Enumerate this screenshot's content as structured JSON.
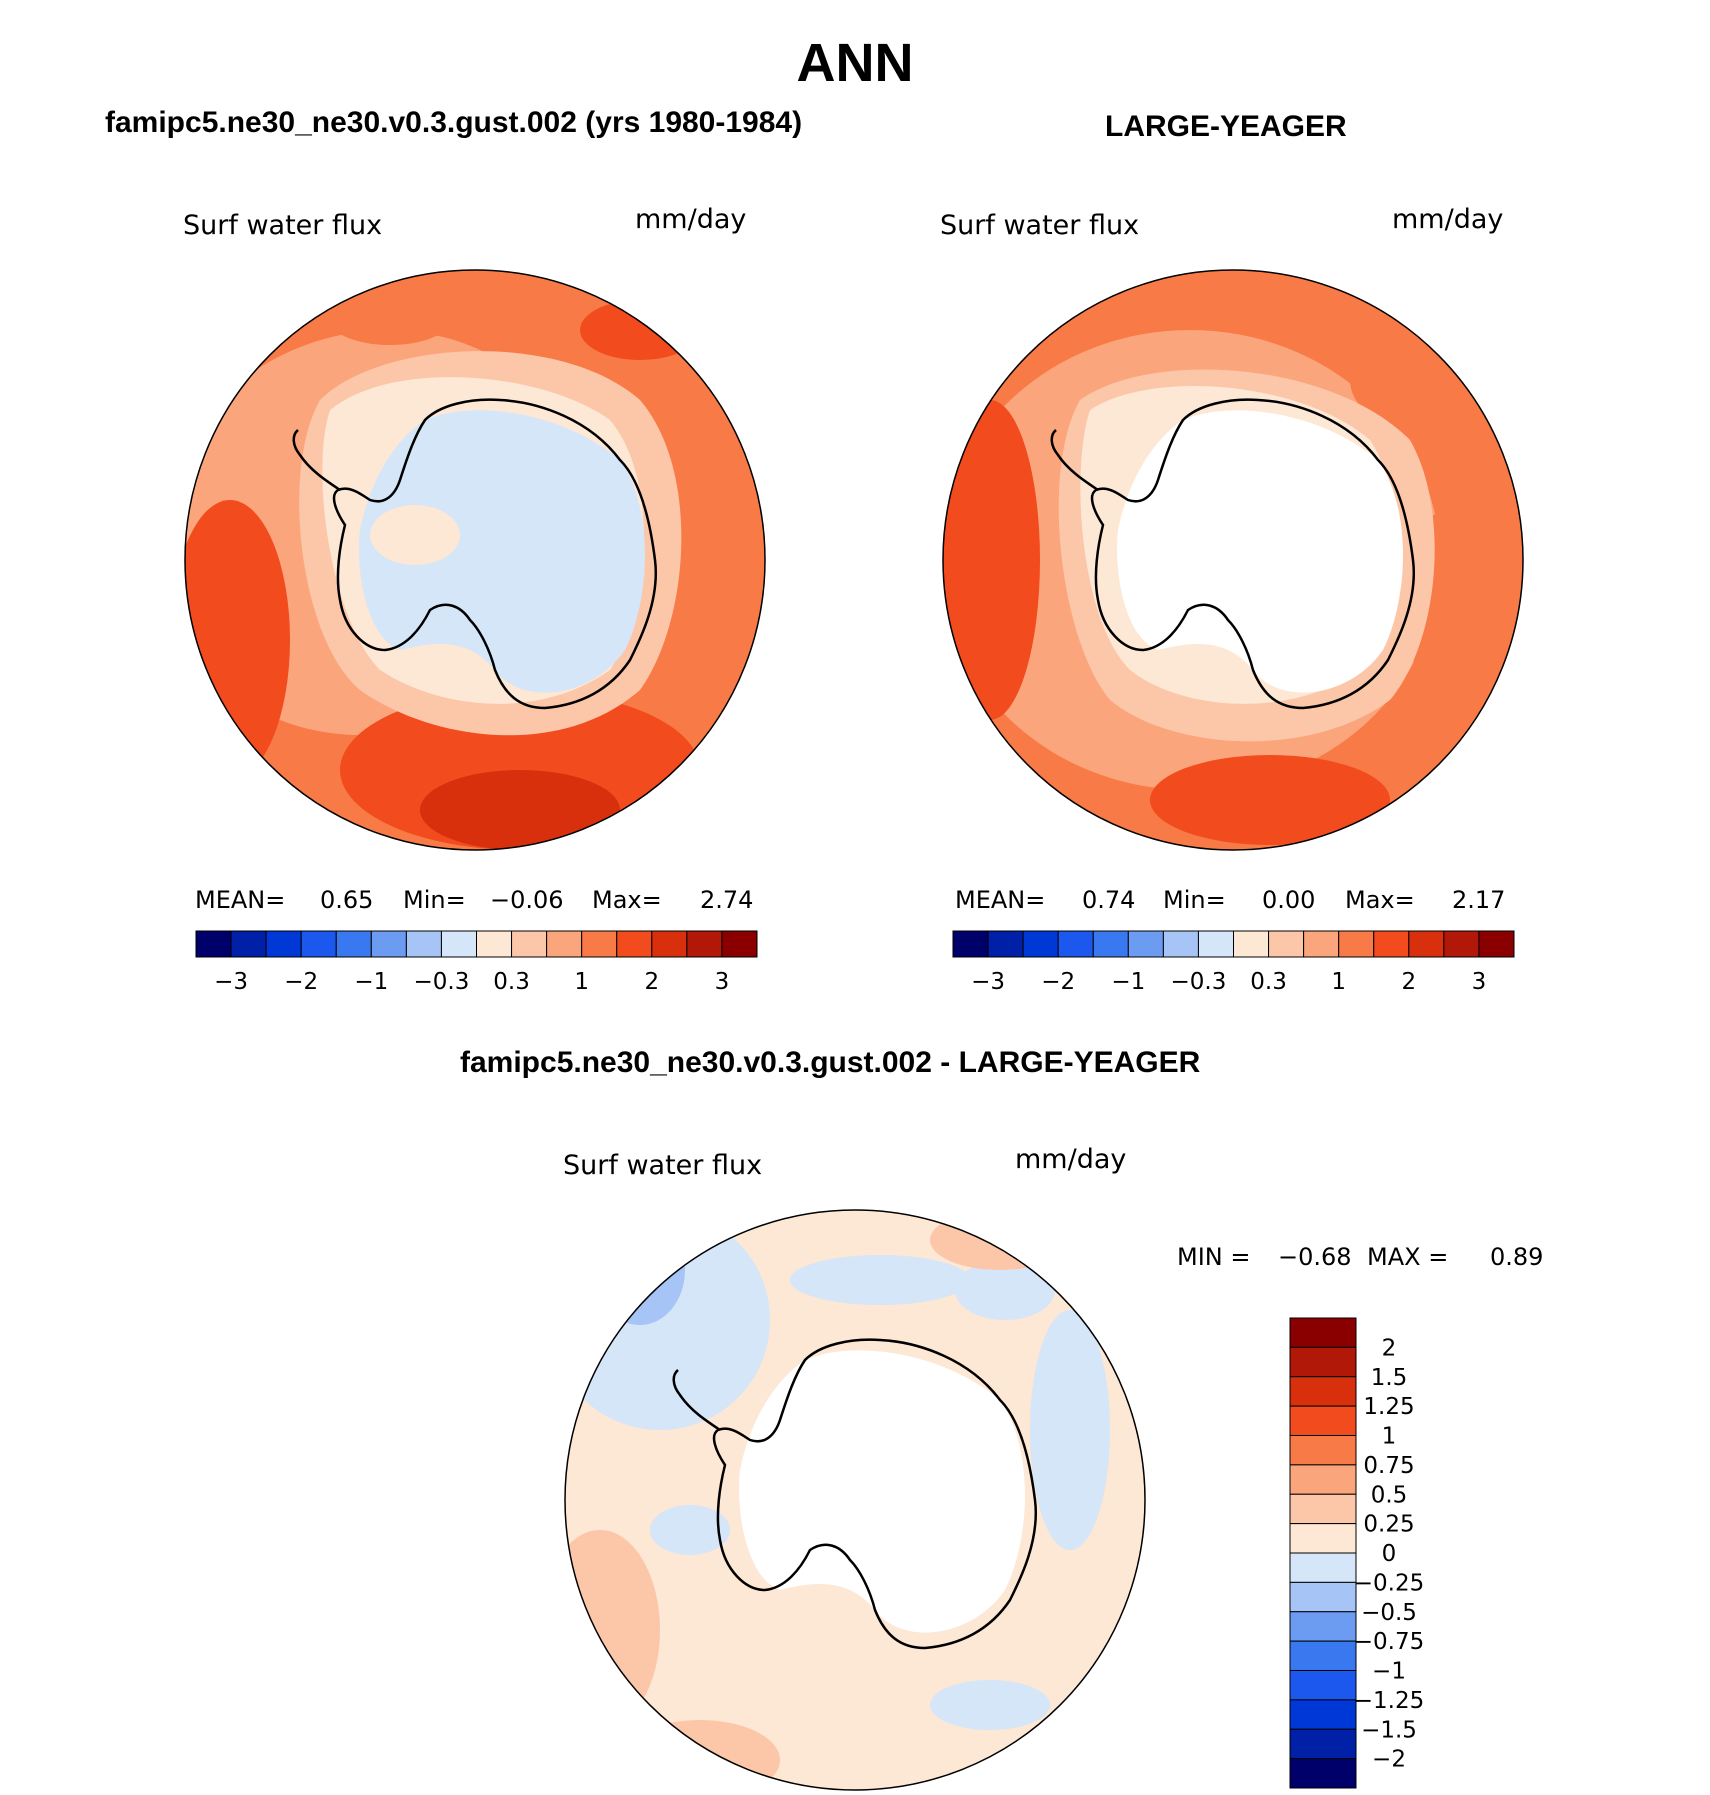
{
  "title": "ANN",
  "colors": {
    "scale": [
      "#00006b",
      "#0020a8",
      "#0038d8",
      "#1c58ee",
      "#3a78f0",
      "#6c9cf2",
      "#a7c4f6",
      "#d4e6f8",
      "#fde7d5",
      "#fcc6a8",
      "#fba57c",
      "#f87a46",
      "#f24b1e",
      "#d8300c",
      "#b21808",
      "#8a0000"
    ],
    "landline": "#000000"
  },
  "panels": [
    {
      "title": "famipc5.ne30_ne30.v0.3.gust.002 (yrs 1980-1984)",
      "variable": "Surf water flux",
      "units": "mm/day",
      "stats": {
        "mean_label": "MEAN=",
        "mean": "0.65",
        "min_label": "Min=",
        "min": "−0.06",
        "max_label": "Max=",
        "max": "2.74"
      },
      "colorbar_ticks": [
        "−3",
        "−2",
        "−1",
        "−0.3",
        "0.3",
        "1",
        "2",
        "3"
      ]
    },
    {
      "title": "LARGE-YEAGER",
      "variable": "Surf water flux",
      "units": "mm/day",
      "stats": {
        "mean_label": "MEAN=",
        "mean": "0.74",
        "min_label": "Min=",
        "min": "0.00",
        "max_label": "Max=",
        "max": "2.17"
      },
      "colorbar_ticks": [
        "−3",
        "−2",
        "−1",
        "−0.3",
        "0.3",
        "1",
        "2",
        "3"
      ]
    },
    {
      "title": "famipc5.ne30_ne30.v0.3.gust.002 - LARGE-YEAGER",
      "variable": "Surf water flux",
      "units": "mm/day",
      "stats": {
        "min_label": "MIN =",
        "min": "−0.68",
        "max_label": "MAX =",
        "max": "0.89"
      },
      "colorbar_ticks": [
        "2",
        "1.5",
        "1.25",
        "1",
        "0.75",
        "0.5",
        "0.25",
        "0",
        "−0.25",
        "−0.5",
        "−0.75",
        "−1",
        "−1.25",
        "−1.5",
        "−2"
      ]
    }
  ]
}
